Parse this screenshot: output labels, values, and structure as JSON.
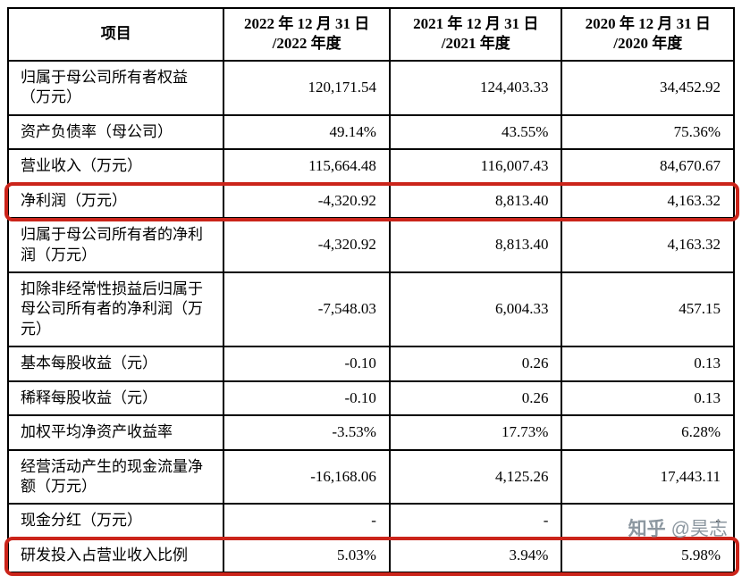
{
  "table": {
    "header": {
      "item_col": "项目",
      "cols": [
        {
          "line1": "2022 年 12 月 31 日",
          "line2": "/2022 年度"
        },
        {
          "line1": "2021 年 12 月 31 日",
          "line2": "/2021 年度"
        },
        {
          "line1": "2020 年 12 月 31 日",
          "line2": "/2020 年度"
        }
      ]
    },
    "rows": [
      {
        "item": "归属于母公司所有者权益（万元）",
        "values": [
          "120,171.54",
          "124,403.33",
          "34,452.92"
        ],
        "highlight": false
      },
      {
        "item": "资产负债率（母公司）",
        "values": [
          "49.14%",
          "43.55%",
          "75.36%"
        ],
        "highlight": false
      },
      {
        "item": "营业收入（万元）",
        "values": [
          "115,664.48",
          "116,007.43",
          "84,670.67"
        ],
        "highlight": false
      },
      {
        "item": "净利润（万元）",
        "values": [
          "-4,320.92",
          "8,813.40",
          "4,163.32"
        ],
        "highlight": true
      },
      {
        "item": "归属于母公司所有者的净利润（万元）",
        "values": [
          "-4,320.92",
          "8,813.40",
          "4,163.32"
        ],
        "highlight": false
      },
      {
        "item": "扣除非经常性损益后归属于母公司所有者的净利润（万元）",
        "values": [
          "-7,548.03",
          "6,004.33",
          "457.15"
        ],
        "highlight": false
      },
      {
        "item": "基本每股收益（元）",
        "values": [
          "-0.10",
          "0.26",
          "0.13"
        ],
        "highlight": false
      },
      {
        "item": "稀释每股收益（元）",
        "values": [
          "-0.10",
          "0.26",
          "0.13"
        ],
        "highlight": false
      },
      {
        "item": "加权平均净资产收益率",
        "values": [
          "-3.53%",
          "17.73%",
          "6.28%"
        ],
        "highlight": false
      },
      {
        "item": "经营活动产生的现金流量净额（万元）",
        "values": [
          "-16,168.06",
          "4,125.26",
          "17,443.11"
        ],
        "highlight": false
      },
      {
        "item": "现金分红（万元）",
        "values": [
          "-",
          "-",
          "-"
        ],
        "highlight": false
      },
      {
        "item": "研发投入占营业收入比例",
        "values": [
          "5.03%",
          "3.94%",
          "5.98%"
        ],
        "highlight": true
      }
    ],
    "highlight_color": "#cb241a"
  },
  "watermark": {
    "brand": "知乎",
    "handle": "@昊志"
  }
}
